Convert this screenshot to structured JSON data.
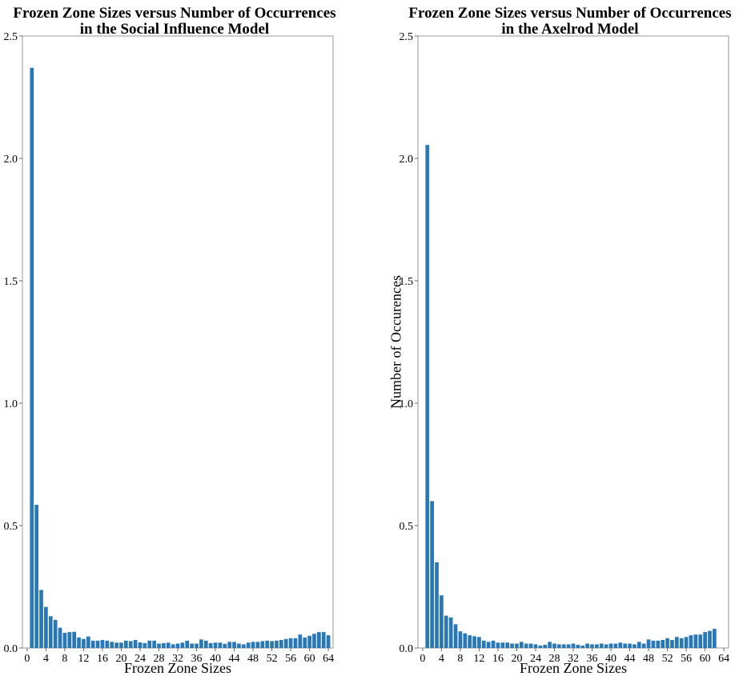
{
  "chart_data": [
    {
      "type": "bar",
      "title_lines": [
        "Frozen Zone Sizes versus Number of Occurrences",
        "in the Social Influence Model"
      ],
      "xlabel": "Frozen Zone Sizes",
      "ylabel": "",
      "ylim": [
        0,
        2.5
      ],
      "xlim": [
        -1,
        65
      ],
      "y_ticks": [
        "0.0",
        "0.5",
        "1.0",
        "1.5",
        "2.0",
        "2.5"
      ],
      "y_tick_values": [
        0,
        0.5,
        1.0,
        1.5,
        2.0,
        2.5
      ],
      "x_ticks": [
        "0",
        "4",
        "8",
        "12",
        "16",
        "20",
        "24",
        "28",
        "32",
        "36",
        "40",
        "44",
        "48",
        "52",
        "56",
        "60",
        "64"
      ],
      "x_tick_values": [
        0,
        4,
        8,
        12,
        16,
        20,
        24,
        28,
        32,
        36,
        40,
        44,
        48,
        52,
        56,
        60,
        64
      ],
      "x": [
        1,
        2,
        3,
        4,
        5,
        6,
        7,
        8,
        9,
        10,
        11,
        12,
        13,
        14,
        15,
        16,
        17,
        18,
        19,
        20,
        21,
        22,
        23,
        24,
        25,
        26,
        27,
        28,
        29,
        30,
        31,
        32,
        33,
        34,
        35,
        36,
        37,
        38,
        39,
        40,
        41,
        42,
        43,
        44,
        45,
        46,
        47,
        48,
        49,
        50,
        51,
        52,
        53,
        54,
        55,
        56,
        57,
        58,
        59,
        60,
        61,
        62,
        63,
        64
      ],
      "values": [
        2.37,
        0.585,
        0.237,
        0.168,
        0.13,
        0.115,
        0.083,
        0.062,
        0.065,
        0.066,
        0.043,
        0.037,
        0.047,
        0.03,
        0.03,
        0.033,
        0.03,
        0.025,
        0.022,
        0.022,
        0.03,
        0.028,
        0.033,
        0.023,
        0.02,
        0.03,
        0.03,
        0.018,
        0.02,
        0.022,
        0.015,
        0.018,
        0.022,
        0.03,
        0.018,
        0.018,
        0.035,
        0.03,
        0.02,
        0.022,
        0.022,
        0.017,
        0.025,
        0.025,
        0.018,
        0.015,
        0.022,
        0.025,
        0.025,
        0.028,
        0.03,
        0.028,
        0.03,
        0.033,
        0.037,
        0.04,
        0.04,
        0.055,
        0.043,
        0.05,
        0.058,
        0.065,
        0.065,
        0.052
      ],
      "color": "#2878b8"
    },
    {
      "type": "bar",
      "title_lines": [
        "Frozen Zone Sizes versus Number of Occurrences",
        "in the Axelrod Model"
      ],
      "xlabel": "Frozen Zone Sizes",
      "ylabel": "Number of Occurences",
      "ylim": [
        0,
        2.5
      ],
      "xlim": [
        -1,
        65
      ],
      "y_ticks": [
        "0.0",
        "0.5",
        "1.0",
        "1.5",
        "2.0",
        "2.5"
      ],
      "y_tick_values": [
        0,
        0.5,
        1.0,
        1.5,
        2.0,
        2.5
      ],
      "x_ticks": [
        "0",
        "4",
        "8",
        "12",
        "16",
        "20",
        "24",
        "28",
        "32",
        "36",
        "40",
        "44",
        "48",
        "52",
        "56",
        "60",
        "64"
      ],
      "x_tick_values": [
        0,
        4,
        8,
        12,
        16,
        20,
        24,
        28,
        32,
        36,
        40,
        44,
        48,
        52,
        56,
        60,
        64
      ],
      "x": [
        1,
        2,
        3,
        4,
        5,
        6,
        7,
        8,
        9,
        10,
        11,
        12,
        13,
        14,
        15,
        16,
        17,
        18,
        19,
        20,
        21,
        22,
        23,
        24,
        25,
        26,
        27,
        28,
        29,
        30,
        31,
        32,
        33,
        34,
        35,
        36,
        37,
        38,
        39,
        40,
        41,
        42,
        43,
        44,
        45,
        46,
        47,
        48,
        49,
        50,
        51,
        52,
        53,
        54,
        55,
        56,
        57,
        58,
        59,
        60,
        61,
        62,
        63,
        64
      ],
      "values": [
        2.055,
        0.6,
        0.35,
        0.215,
        0.132,
        0.125,
        0.097,
        0.068,
        0.06,
        0.052,
        0.048,
        0.045,
        0.03,
        0.025,
        0.03,
        0.022,
        0.022,
        0.022,
        0.018,
        0.018,
        0.025,
        0.018,
        0.018,
        0.015,
        0.01,
        0.013,
        0.025,
        0.018,
        0.015,
        0.015,
        0.015,
        0.018,
        0.013,
        0.01,
        0.018,
        0.015,
        0.015,
        0.018,
        0.015,
        0.018,
        0.018,
        0.022,
        0.018,
        0.018,
        0.015,
        0.025,
        0.018,
        0.035,
        0.03,
        0.03,
        0.033,
        0.04,
        0.033,
        0.045,
        0.04,
        0.045,
        0.052,
        0.055,
        0.055,
        0.065,
        0.07,
        0.078,
        0.0,
        0.0
      ],
      "color": "#2878b8"
    }
  ]
}
